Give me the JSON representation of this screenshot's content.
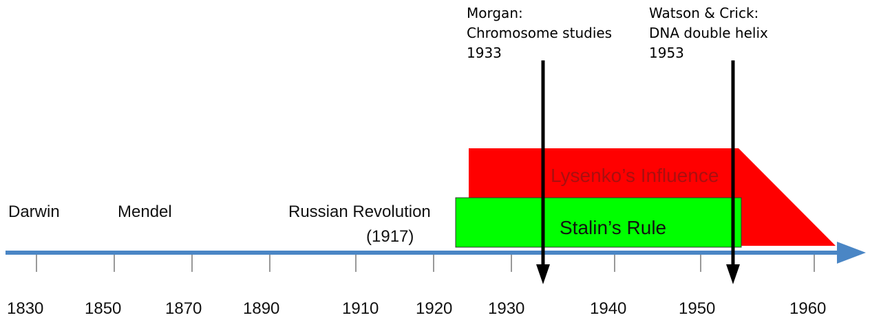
{
  "people": {
    "darwin": "Darwin",
    "mendel": "Mendel"
  },
  "revolution": {
    "name": "Russian Revolution",
    "year": "(1917)"
  },
  "events": [
    {
      "line1": "Morgan:",
      "line2": "Chromosome studies",
      "line3": "1933",
      "year": 1933
    },
    {
      "line1": "Watson & Crick:",
      "line2": "DNA double helix",
      "line3": "1953",
      "year": 1953
    }
  ],
  "bands": [
    {
      "label": "Lysenko’s Influence",
      "color": "#ff0000"
    },
    {
      "label": "Stalin’s Rule",
      "color": "#00ff00"
    }
  ],
  "axis": {
    "color": "#4a86c5",
    "year_labels": [
      "1830",
      "1850",
      "1870",
      "1890",
      "1910",
      "1920",
      "1930",
      "1940",
      "1950",
      "1960"
    ]
  }
}
